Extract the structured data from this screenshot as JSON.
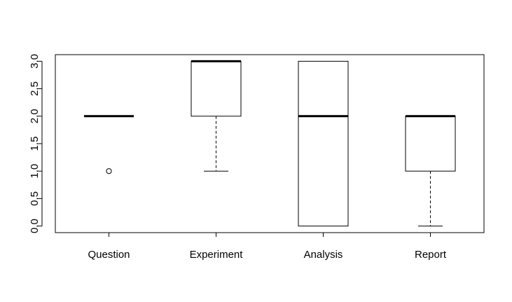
{
  "chart_data": {
    "type": "box",
    "categories": [
      "Question",
      "Experiment",
      "Analysis",
      "Report"
    ],
    "ylim": [
      -0.12,
      3.12
    ],
    "yticks": [
      {
        "value": 0.0,
        "label": "0.0"
      },
      {
        "value": 0.5,
        "label": "0.5"
      },
      {
        "value": 1.0,
        "label": "1.0"
      },
      {
        "value": 1.5,
        "label": "1.5"
      },
      {
        "value": 2.0,
        "label": "2.0"
      },
      {
        "value": 2.5,
        "label": "2.5"
      },
      {
        "value": 3.0,
        "label": "3.0"
      }
    ],
    "boxes": [
      {
        "category": "Question",
        "whisker_low": 2,
        "q1": 2,
        "median": 2,
        "q3": 2,
        "whisker_high": 2,
        "outliers": [
          1
        ]
      },
      {
        "category": "Experiment",
        "whisker_low": 1,
        "q1": 2,
        "median": 3,
        "q3": 3,
        "whisker_high": 3,
        "outliers": []
      },
      {
        "category": "Analysis",
        "whisker_low": 0,
        "q1": 0,
        "median": 2,
        "q3": 3,
        "whisker_high": 3,
        "outliers": []
      },
      {
        "category": "Report",
        "whisker_low": 0,
        "q1": 1,
        "median": 2,
        "q3": 2,
        "whisker_high": 2,
        "outliers": []
      }
    ],
    "title": "",
    "xlabel": "",
    "ylabel": "",
    "grid": false,
    "legend": "none"
  }
}
